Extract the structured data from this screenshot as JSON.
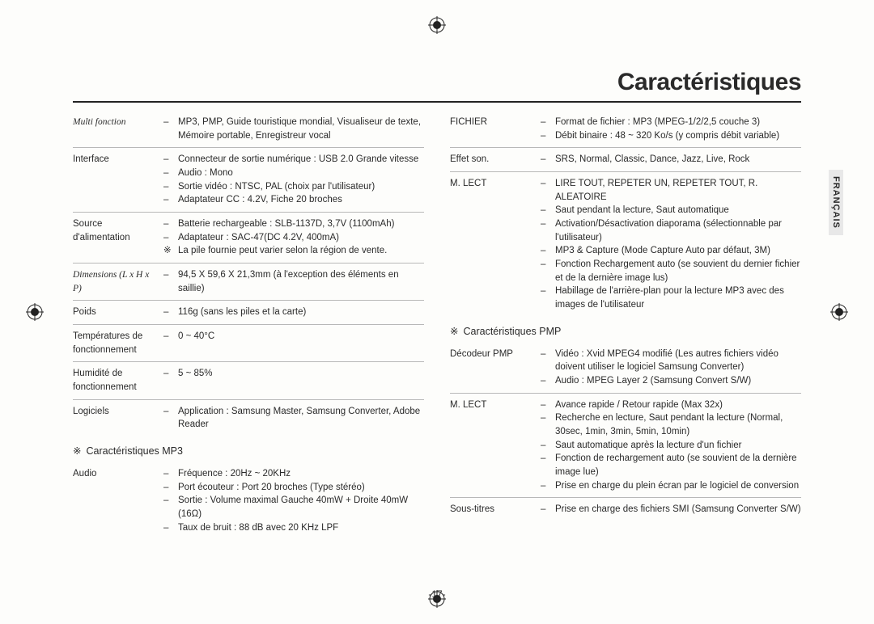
{
  "title": "Caractéristiques",
  "side_lang": "FRANÇAIS",
  "page_number": "-17-",
  "left_specs": [
    {
      "label": "Multi fonction",
      "label_italic": true,
      "values": [
        {
          "d": "–",
          "t": "MP3, PMP, Guide touristique mondial, Visualiseur de texte, Mémoire portable, Enregistreur vocal"
        }
      ]
    },
    {
      "label": "Interface",
      "values": [
        {
          "d": "–",
          "t": "Connecteur de sortie numérique : USB 2.0 Grande vitesse"
        },
        {
          "d": "–",
          "t": "Audio : Mono"
        },
        {
          "d": "–",
          "t": "Sortie vidéo : NTSC, PAL (choix par l'utilisateur)"
        },
        {
          "d": "–",
          "t": "Adaptateur CC : 4.2V, Fiche 20 broches"
        }
      ]
    },
    {
      "label": "Source d'alimentation",
      "values": [
        {
          "d": "–",
          "t": "Batterie rechargeable : SLB-1137D, 3,7V (1100mAh)"
        },
        {
          "d": "–",
          "t": "Adaptateur : SAC-47(DC 4.2V, 400mA)"
        },
        {
          "d": "※",
          "t": "La pile fournie peut varier selon la région de vente.",
          "note": true
        }
      ]
    },
    {
      "label": "Dimensions (L x H x P)",
      "label_italic": true,
      "values": [
        {
          "d": "–",
          "t": "94,5 X 59,6 X 21,3mm (à l'exception des éléments en saillie)"
        }
      ]
    },
    {
      "label": "Poids",
      "values": [
        {
          "d": "–",
          "t": "116g (sans les piles et la carte)"
        }
      ]
    },
    {
      "label": "Températures de fonctionnement",
      "values": [
        {
          "d": "–",
          "t": "0 ~ 40°C"
        }
      ]
    },
    {
      "label": "Humidité de fonctionnement",
      "values": [
        {
          "d": "–",
          "t": "5 ~ 85%"
        }
      ]
    },
    {
      "label": "Logiciels",
      "values": [
        {
          "d": "–",
          "t": "Application : Samsung Master, Samsung Converter, Adobe Reader"
        }
      ]
    }
  ],
  "mp3_section": "Caractéristiques MP3",
  "mp3_specs": [
    {
      "label": "Audio",
      "values": [
        {
          "d": "–",
          "t": "Fréquence : 20Hz ~ 20KHz"
        },
        {
          "d": "–",
          "t": "Port écouteur : Port 20 broches (Type stéréo)"
        },
        {
          "d": "–",
          "t": "Sortie : Volume maximal Gauche 40mW + Droite 40mW (16Ω)"
        },
        {
          "d": "–",
          "t": "Taux de bruit : 88 dB avec 20 KHz LPF"
        }
      ]
    }
  ],
  "right_specs": [
    {
      "label": "FICHIER",
      "values": [
        {
          "d": "–",
          "t": "Format de fichier : MP3 (MPEG-1/2/2,5 couche 3)"
        },
        {
          "d": "–",
          "t": "Débit binaire : 48 ~ 320 Ko/s (y compris débit variable)"
        }
      ]
    },
    {
      "label": "Effet son.",
      "values": [
        {
          "d": "–",
          "t": "SRS, Normal, Classic, Dance, Jazz, Live, Rock"
        }
      ]
    },
    {
      "label": "M. LECT",
      "values": [
        {
          "d": "–",
          "t": "LIRE TOUT, REPETER UN, REPETER TOUT, R. ALEATOIRE"
        },
        {
          "d": "–",
          "t": "Saut pendant la lecture, Saut automatique"
        },
        {
          "d": "–",
          "t": "Activation/Désactivation diaporama (sélectionnable par l'utilisateur)"
        },
        {
          "d": "–",
          "t": "MP3 & Capture (Mode Capture Auto par défaut, 3M)"
        },
        {
          "d": "–",
          "t": "Fonction Rechargement auto (se souvient du dernier fichier et de la dernière image lus)"
        },
        {
          "d": "–",
          "t": "Habillage de l'arrière-plan pour la lecture MP3 avec des images de l'utilisateur"
        }
      ]
    }
  ],
  "pmp_section": "Caractéristiques PMP",
  "pmp_specs": [
    {
      "label": "Décodeur PMP",
      "values": [
        {
          "d": "–",
          "t": "Vidéo : Xvid MPEG4 modifié (Les autres fichiers vidéo doivent utiliser le logiciel Samsung Converter)"
        },
        {
          "d": "–",
          "t": "Audio : MPEG Layer 2 (Samsung Convert S/W)"
        }
      ]
    },
    {
      "label": "M. LECT",
      "values": [
        {
          "d": "–",
          "t": "Avance rapide / Retour rapide (Max 32x)"
        },
        {
          "d": "–",
          "t": "Recherche en lecture, Saut pendant la lecture (Normal, 30sec, 1min, 3min, 5min, 10min)"
        },
        {
          "d": "–",
          "t": "Saut automatique après la lecture d'un fichier"
        },
        {
          "d": "–",
          "t": "Fonction de rechargement auto (se souvient de la dernière image lue)"
        },
        {
          "d": "–",
          "t": "Prise en charge du plein écran par le logiciel de conversion"
        }
      ]
    },
    {
      "label": "Sous-titres",
      "values": [
        {
          "d": "–",
          "t": "Prise en charge des fichiers SMI (Samsung Converter S/W)"
        }
      ]
    }
  ]
}
